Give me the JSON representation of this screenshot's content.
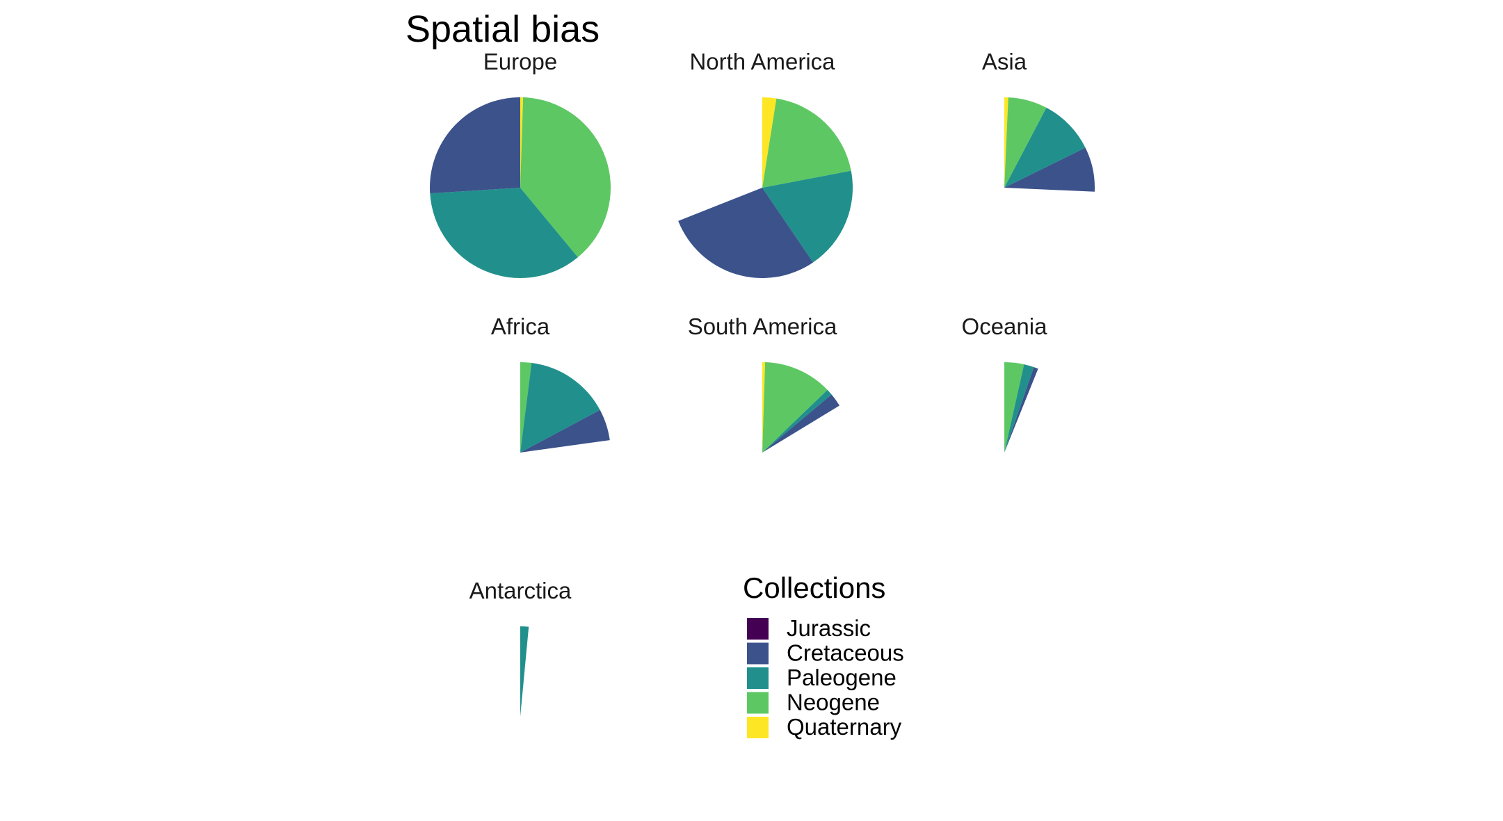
{
  "chart_data": {
    "type": "pie",
    "title": "Spatial bias",
    "legend": {
      "title": "Collections",
      "position": "bottom-center",
      "entries": [
        {
          "name": "Jurassic",
          "color": "#440154"
        },
        {
          "name": "Cretaceous",
          "color": "#3B528B"
        },
        {
          "name": "Paleogene",
          "color": "#21908C"
        },
        {
          "name": "Neogene",
          "color": "#5DC863"
        },
        {
          "name": "Quaternary",
          "color": "#FDE725"
        }
      ]
    },
    "value_scale_max": 100,
    "panels": [
      {
        "name": "Europe",
        "values": {
          "Jurassic": 0,
          "Cretaceous": 26.0,
          "Paleogene": 35.0,
          "Neogene": 38.5,
          "Quaternary": 0.5
        }
      },
      {
        "name": "North America",
        "values": {
          "Jurassic": 0,
          "Cretaceous": 28.5,
          "Paleogene": 18.5,
          "Neogene": 19.5,
          "Quaternary": 2.5
        }
      },
      {
        "name": "Asia",
        "values": {
          "Jurassic": 0,
          "Cretaceous": 8.0,
          "Paleogene": 10.0,
          "Neogene": 7.0,
          "Quaternary": 0.7
        }
      },
      {
        "name": "Africa",
        "values": {
          "Jurassic": 0,
          "Cretaceous": 5.6,
          "Paleogene": 15.2,
          "Neogene": 2.0,
          "Quaternary": 0
        }
      },
      {
        "name": "South America",
        "values": {
          "Jurassic": 0,
          "Cretaceous": 2.4,
          "Paleogene": 1.1,
          "Neogene": 12.3,
          "Quaternary": 0.5
        }
      },
      {
        "name": "Oceania",
        "values": {
          "Jurassic": 0,
          "Cretaceous": 0.8,
          "Paleogene": 1.8,
          "Neogene": 3.5,
          "Quaternary": 0
        }
      },
      {
        "name": "Antarctica",
        "values": {
          "Jurassic": 0,
          "Cretaceous": 0,
          "Paleogene": 1.5,
          "Neogene": 0,
          "Quaternary": 0
        }
      }
    ]
  }
}
